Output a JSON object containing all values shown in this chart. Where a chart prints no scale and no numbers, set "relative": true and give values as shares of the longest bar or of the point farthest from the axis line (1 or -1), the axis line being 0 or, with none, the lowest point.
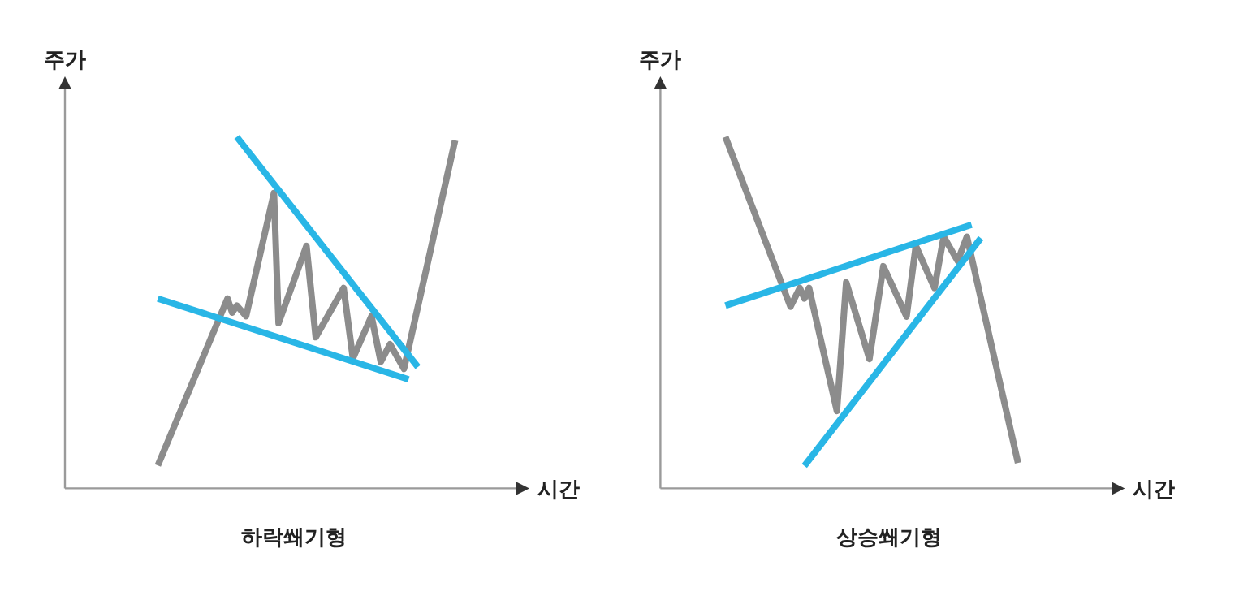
{
  "chart_data": [
    {
      "type": "line",
      "relative": true,
      "title": "하락쐐기형",
      "xlabel": "시간",
      "ylabel": "주가",
      "categories": [
        null,
        null,
        null,
        null,
        null,
        null,
        null,
        null,
        null,
        null,
        null,
        null,
        null,
        null,
        null,
        null,
        null,
        null,
        null,
        null,
        null,
        null,
        null,
        null,
        null,
        null,
        null,
        null,
        null,
        null,
        null,
        null,
        null,
        null,
        null,
        null,
        null,
        null,
        null,
        null,
        null,
        null,
        null,
        null,
        null,
        null,
        null,
        null,
        null,
        null,
        null,
        null,
        null,
        null,
        null,
        null,
        null,
        null,
        null,
        null,
        null,
        null,
        null,
        null,
        null
      ],
      "series": [
        {
          "color": "#8c8c8c",
          "values": [
            0.065,
            null,
            null,
            null,
            null,
            null,
            null,
            null,
            null,
            null,
            null,
            null,
            null,
            null,
            null,
            0.54,
            0.5,
            0.52,
            null,
            0.49,
            null,
            null,
            null,
            null,
            null,
            0.84,
            0.47,
            null,
            null,
            null,
            null,
            null,
            0.69,
            null,
            0.43,
            null,
            null,
            null,
            null,
            null,
            0.57,
            null,
            0.37,
            null,
            null,
            null,
            0.49,
            null,
            0.36,
            null,
            0.41,
            null,
            null,
            0.34,
            null,
            null,
            null,
            null,
            null,
            null,
            null,
            null,
            null,
            null,
            0.99
          ]
        },
        {
          "color": "#29b6e6",
          "values": [
            null,
            null,
            null,
            null,
            null,
            null,
            null,
            null,
            null,
            null,
            null,
            null,
            null,
            null,
            null,
            null,
            null,
            1.0,
            null,
            null,
            null,
            null,
            null,
            null,
            null,
            null,
            null,
            null,
            null,
            null,
            null,
            null,
            null,
            null,
            null,
            null,
            null,
            null,
            null,
            null,
            null,
            null,
            null,
            null,
            null,
            null,
            null,
            null,
            null,
            null,
            null,
            null,
            null,
            null,
            null,
            null,
            0.345,
            null,
            null,
            null,
            null,
            null,
            null,
            null,
            null
          ]
        },
        {
          "color": "#29b6e6",
          "values": [
            0.54,
            null,
            null,
            null,
            null,
            null,
            null,
            null,
            null,
            null,
            null,
            null,
            null,
            null,
            null,
            null,
            null,
            null,
            null,
            null,
            null,
            null,
            null,
            null,
            null,
            null,
            null,
            null,
            null,
            null,
            null,
            null,
            null,
            null,
            null,
            null,
            null,
            null,
            null,
            null,
            null,
            null,
            null,
            null,
            null,
            null,
            null,
            null,
            null,
            null,
            null,
            null,
            null,
            null,
            0.31,
            null,
            null,
            null,
            null,
            null,
            null,
            null,
            null,
            null,
            null
          ]
        }
      ]
    },
    {
      "type": "line",
      "relative": true,
      "title": "상승쐐기형",
      "xlabel": "시간",
      "ylabel": "주가",
      "categories": [
        null,
        null,
        null,
        null,
        null,
        null,
        null,
        null,
        null,
        null,
        null,
        null,
        null,
        null,
        null,
        null,
        null,
        null,
        null,
        null,
        null,
        null,
        null,
        null,
        null,
        null,
        null,
        null,
        null,
        null,
        null,
        null,
        null,
        null,
        null,
        null,
        null,
        null,
        null,
        null,
        null,
        null,
        null,
        null,
        null,
        null,
        null,
        null,
        null,
        null,
        null,
        null,
        null,
        null,
        null,
        null,
        null,
        null,
        null,
        null,
        null,
        null,
        null,
        null,
        null
      ],
      "series": [
        {
          "color": "#8c8c8c",
          "values": [
            null,
            1.0,
            null,
            null,
            null,
            null,
            null,
            null,
            null,
            null,
            null,
            null,
            null,
            null,
            null,
            0.517,
            null,
            0.57,
            0.54,
            0.57,
            null,
            null,
            null,
            null,
            null,
            0.22,
            null,
            0.586,
            null,
            null,
            null,
            null,
            0.368,
            null,
            null,
            0.632,
            null,
            null,
            null,
            null,
            0.489,
            null,
            0.69,
            null,
            null,
            null,
            0.57,
            null,
            0.716,
            null,
            null,
            0.647,
            null,
            0.716,
            null,
            null,
            null,
            null,
            null,
            null,
            null,
            null,
            null,
            null,
            0.072
          ]
        },
        {
          "color": "#29b6e6",
          "values": [
            null,
            0.52,
            null,
            null,
            null,
            null,
            null,
            null,
            null,
            null,
            null,
            null,
            null,
            null,
            null,
            null,
            null,
            null,
            null,
            null,
            null,
            null,
            null,
            null,
            null,
            null,
            null,
            null,
            null,
            null,
            null,
            null,
            null,
            null,
            null,
            null,
            null,
            null,
            null,
            null,
            null,
            null,
            null,
            null,
            null,
            null,
            null,
            null,
            null,
            null,
            null,
            null,
            null,
            null,
            0.75,
            null,
            null,
            null,
            null,
            null,
            null,
            null,
            null,
            null,
            null
          ]
        },
        {
          "color": "#29b6e6",
          "values": [
            null,
            null,
            null,
            null,
            null,
            null,
            null,
            null,
            null,
            null,
            null,
            null,
            null,
            null,
            null,
            null,
            null,
            null,
            0.064,
            null,
            null,
            null,
            null,
            null,
            null,
            null,
            null,
            null,
            null,
            null,
            null,
            null,
            null,
            null,
            null,
            null,
            null,
            null,
            null,
            null,
            null,
            null,
            null,
            null,
            null,
            null,
            null,
            null,
            null,
            null,
            null,
            null,
            null,
            null,
            null,
            null,
            0.712,
            null,
            null,
            null,
            null,
            null,
            null,
            null,
            null
          ]
        }
      ]
    }
  ]
}
